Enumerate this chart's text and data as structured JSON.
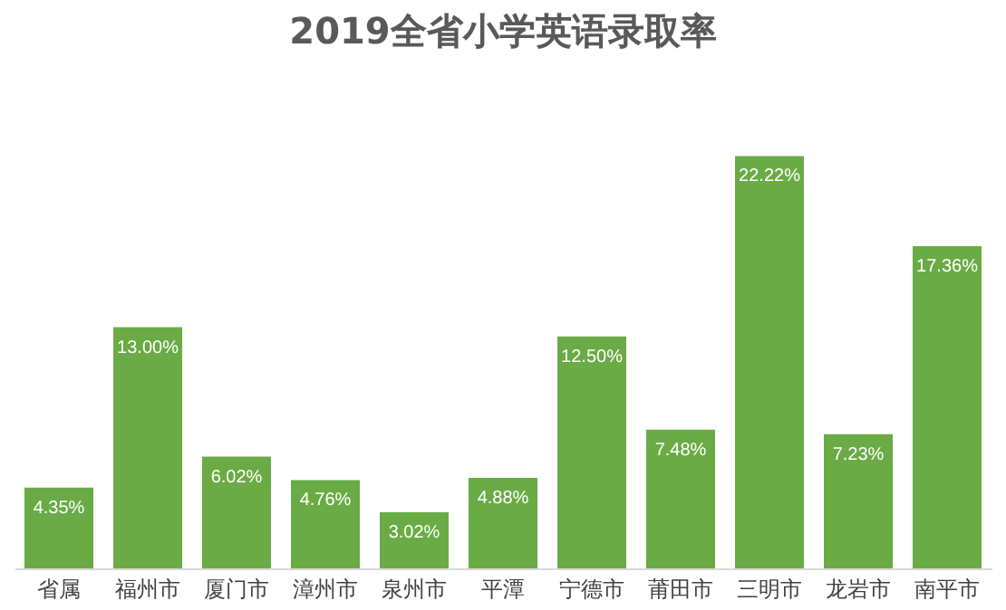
{
  "chart_data": {
    "type": "bar",
    "title": "2019全省小学英语录取率",
    "categories": [
      "省属",
      "福州市",
      "厦门市",
      "漳州市",
      "泉州市",
      "平潭",
      "宁德市",
      "莆田市",
      "三明市",
      "龙岩市",
      "南平市"
    ],
    "values": [
      4.35,
      13.0,
      6.02,
      4.76,
      3.02,
      4.88,
      12.5,
      7.48,
      22.22,
      7.23,
      17.36
    ],
    "value_labels": [
      "4.35%",
      "13.00%",
      "6.02%",
      "4.76%",
      "3.02%",
      "4.88%",
      "12.50%",
      "7.48%",
      "22.22%",
      "7.23%",
      "17.36%"
    ],
    "color": "#6aab45"
  }
}
